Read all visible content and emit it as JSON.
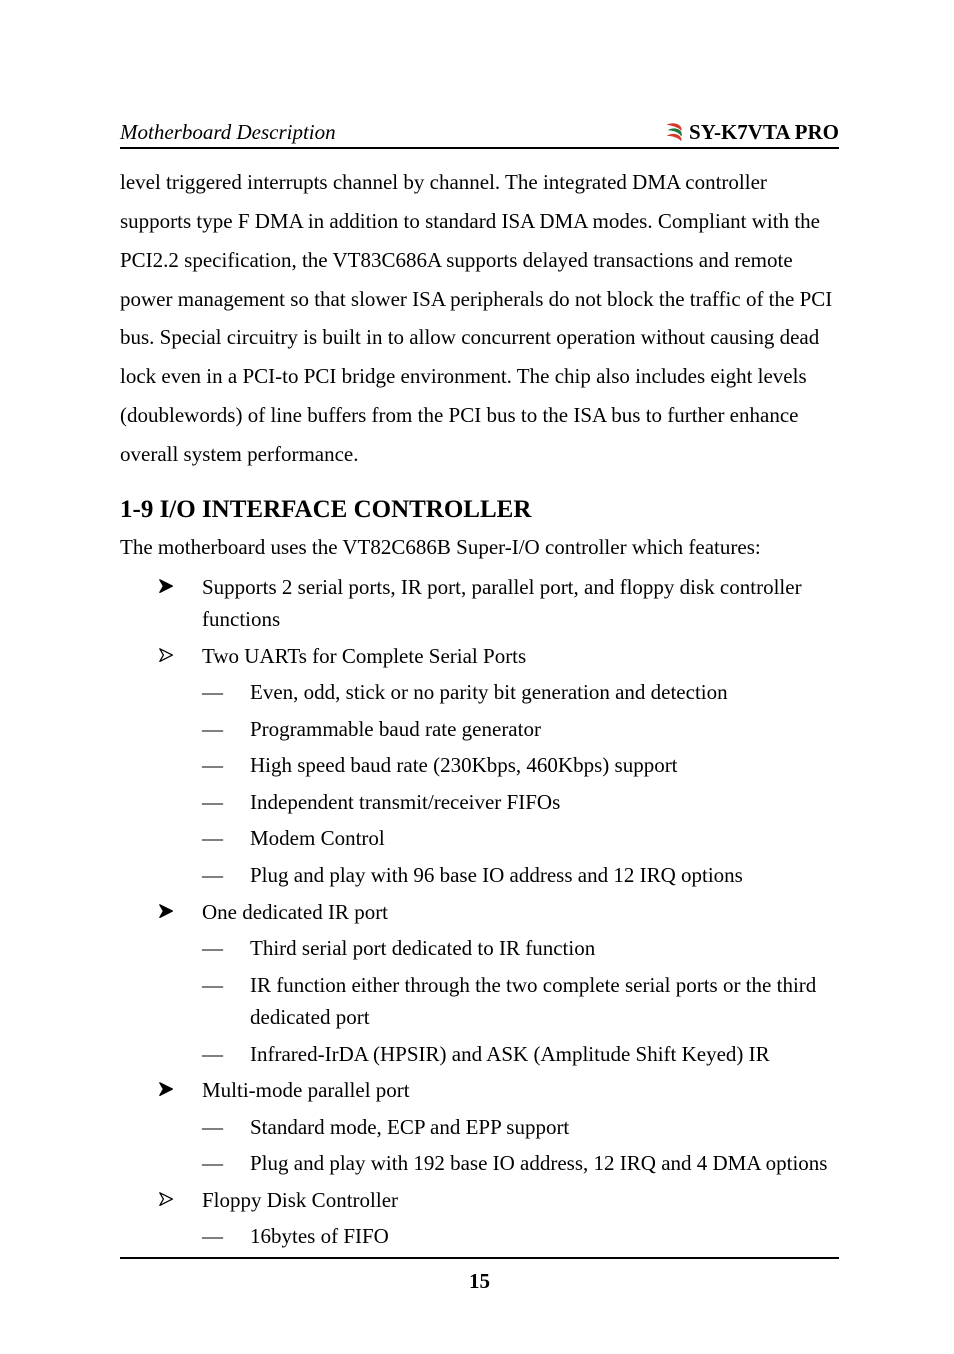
{
  "header": {
    "left": "Motherboard Description",
    "right": "SY-K7VTA PRO",
    "logo_stroke": "#1a7a3a",
    "logo_fill": "#d43a2a",
    "logo_text_color": "#1a7a3a"
  },
  "paragraph": "level triggered interrupts channel by channel. The integrated DMA controller supports type F DMA in addition to standard ISA DMA modes. Compliant with the PCI2.2 specification, the VT83C686A supports delayed transactions and remote power management so that slower ISA peripherals do not block the traffic of the PCI bus. Special circuitry is built in to allow concurrent operation without causing dead lock even in a PCI-to PCI bridge environment. The chip also includes eight levels (doublewords) of line buffers from the PCI bus to the ISA bus to further enhance overall system performance.",
  "section": {
    "heading": "1-9  I/O INTERFACE CONTROLLER",
    "intro": "The motherboard uses the VT82C686B Super-I/O controller which features:"
  },
  "bullets": {
    "arrow_fill": "#000000",
    "arrow_outline_stroke": "#000000",
    "items": [
      {
        "type": "filled",
        "text": "Supports 2 serial ports, IR port, parallel port, and floppy disk controller functions"
      },
      {
        "type": "outline",
        "text": "Two UARTs for Complete Serial Ports",
        "children": [
          "Even, odd, stick or no parity bit generation and detection",
          "Programmable baud rate generator",
          "High speed baud rate (230Kbps, 460Kbps) support",
          "Independent transmit/receiver FIFOs",
          "Modem Control",
          "Plug and play with 96 base IO address and 12 IRQ options"
        ]
      },
      {
        "type": "filled",
        "text": "One dedicated IR port",
        "children": [
          "Third serial port dedicated to IR function",
          "IR function either through the two complete serial ports or the third dedicated port",
          "Infrared-IrDA (HPSIR) and ASK (Amplitude Shift Keyed) IR"
        ]
      },
      {
        "type": "filled",
        "text": "Multi-mode parallel port",
        "children": [
          "Standard mode, ECP and EPP support",
          "Plug and play with 192 base IO address, 12 IRQ and 4 DMA options"
        ]
      },
      {
        "type": "outline",
        "text": "Floppy Disk Controller",
        "children": [
          "16bytes of FIFO"
        ]
      }
    ]
  },
  "footer": {
    "page": "15"
  }
}
